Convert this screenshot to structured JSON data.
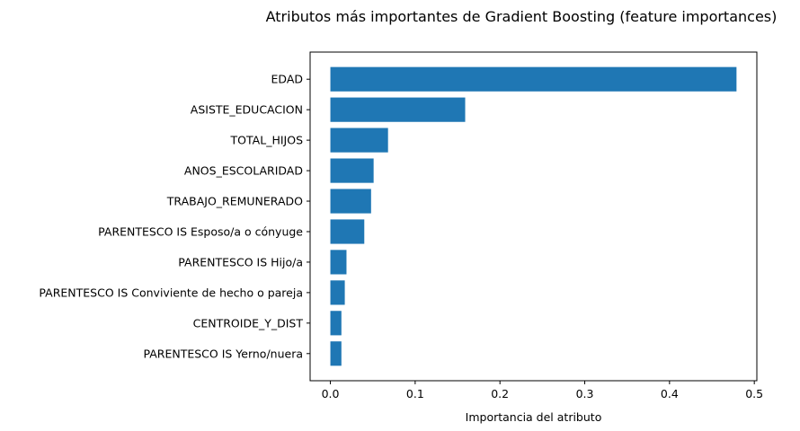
{
  "chart_data": {
    "type": "bar",
    "orientation": "horizontal",
    "title": "Atributos más importantes de Gradient Boosting (feature importances)",
    "xlabel": "Importancia del atributo",
    "ylabel": "",
    "xlim": [
      0,
      0.5
    ],
    "xticks": [
      "0.0",
      "0.1",
      "0.2",
      "0.3",
      "0.4",
      "0.5"
    ],
    "xtick_values": [
      0,
      0.1,
      0.2,
      0.3,
      0.4,
      0.5
    ],
    "grid": false,
    "bar_color": "#1f77b4",
    "categories": [
      "EDAD",
      "ASISTE_EDUCACION",
      "TOTAL_HIJOS",
      "ANOS_ESCOLARIDAD",
      "TRABAJO_REMUNERADO",
      "PARENTESCO IS Esposo/a o cónyuge",
      "PARENTESCO IS Hijo/a",
      "PARENTESCO IS Conviviente de hecho o pareja",
      "CENTROIDE_Y_DIST",
      "PARENTESCO IS Yerno/nuera"
    ],
    "values": [
      0.479,
      0.159,
      0.068,
      0.051,
      0.048,
      0.04,
      0.019,
      0.017,
      0.013,
      0.013
    ]
  }
}
